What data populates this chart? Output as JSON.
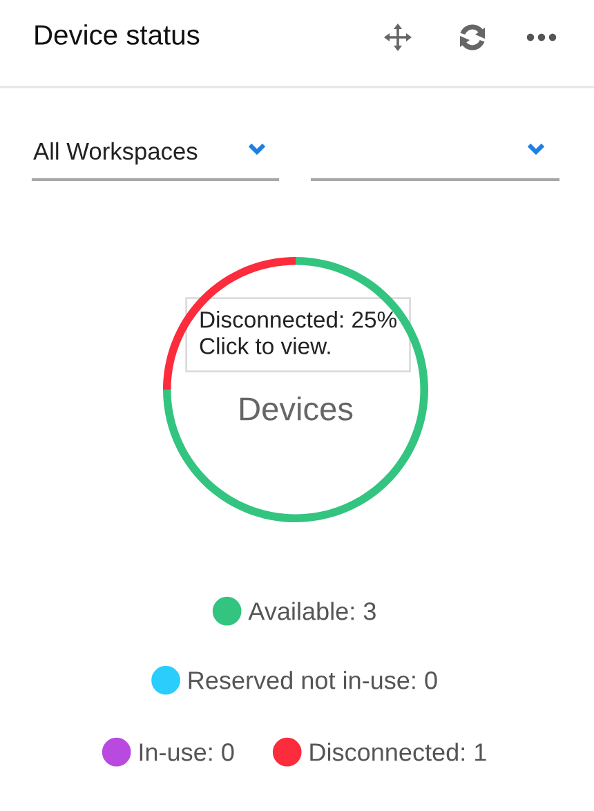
{
  "chart_data": {
    "type": "donut",
    "title": "Device status",
    "categories": [
      "Available: 3",
      "Reserved not in-use: 0",
      "In-use: 0",
      "Disconnected: 1"
    ],
    "values": [
      3,
      0,
      0,
      1
    ],
    "colors": [
      "#33c480",
      "#2bcdfc",
      "#b84ae0",
      "#fc2c3c"
    ],
    "legend": "bottom",
    "annotations": [
      "All Workspaces",
      "Devices",
      "Disconnected: 25%\nClick to view."
    ]
  }
}
